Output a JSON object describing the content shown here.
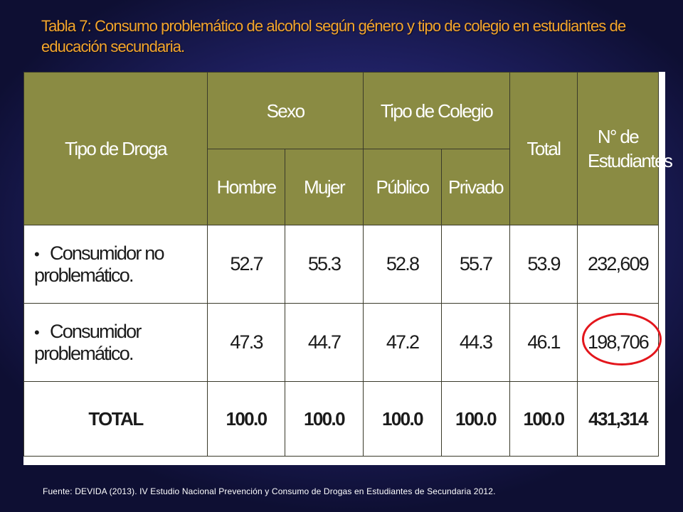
{
  "slide": {
    "title": "Tabla 7: Consumo problemático de alcohol según género y tipo de colegio en estudiantes de educación secundaria.",
    "source": "Fuente: DEVIDA (2013). IV Estudio Nacional Prevención y Consumo de Drogas en Estudiantes de Secundaria 2012."
  },
  "table": {
    "headers": {
      "tipo_droga": "Tipo de Droga",
      "sexo": "Sexo",
      "tipo_colegio": "Tipo de Colegio",
      "total": "Total",
      "n_estudiantes": "N° de Estudiantes",
      "hombre": "Hombre",
      "mujer": "Mujer",
      "publico": "Público",
      "privado": "Privado"
    },
    "rows": [
      {
        "bullet": "•",
        "label": "Consumidor no problemático.",
        "hombre": "52.7",
        "mujer": "55.3",
        "publico": "52.8",
        "privado": "55.7",
        "total": "53.9",
        "n": "232,609"
      },
      {
        "bullet": "•",
        "label": "Consumidor problemático.",
        "hombre": "47.3",
        "mujer": "44.7",
        "publico": "47.2",
        "privado": "44.3",
        "total": "46.1",
        "n": "198,706"
      }
    ],
    "total_row": {
      "label": "TOTAL",
      "hombre": "100.0",
      "mujer": "100.0",
      "publico": "100.0",
      "privado": "100.0",
      "total": "100.0",
      "n": "431,314"
    },
    "header_color": "#8a8b43",
    "highlight_color": "#e3161c"
  }
}
